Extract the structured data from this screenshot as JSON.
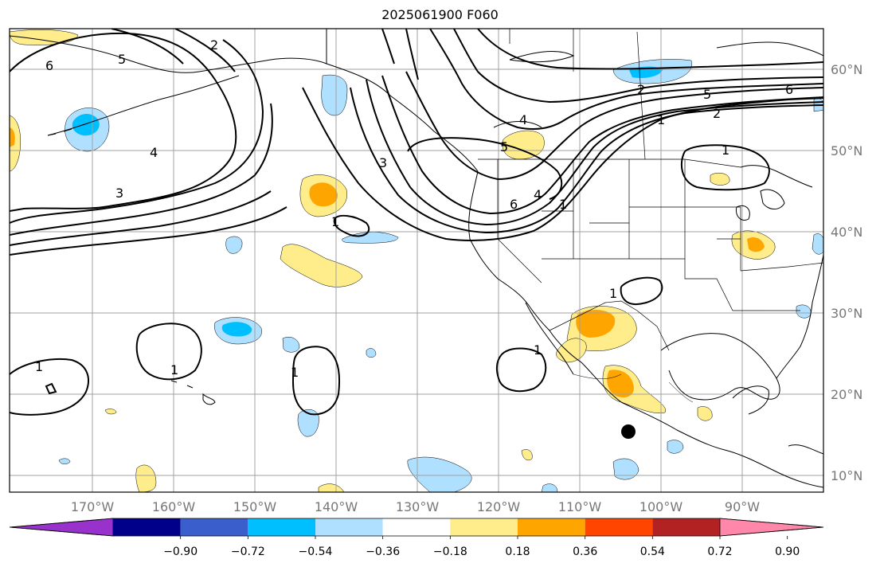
{
  "title": "2025061900 F060",
  "lon_labels": [
    "170°W",
    "160°W",
    "150°W",
    "140°W",
    "130°W",
    "120°W",
    "110°W",
    "100°W",
    "90°W"
  ],
  "lat_labels": [
    "60°N",
    "50°N",
    "40°N",
    "30°N",
    "20°N",
    "10°N"
  ],
  "colorbar": {
    "ticks": [
      "−0.90",
      "−0.72",
      "−0.54",
      "−0.36",
      "−0.18",
      "0.18",
      "0.36",
      "0.54",
      "0.72",
      "0.90"
    ],
    "colors": [
      "#9932cc",
      "#00008b",
      "#3a5fcd",
      "#00bfff",
      "#b0e0ff",
      "#ffffff",
      "#ffec8b",
      "#ffa500",
      "#ff4500",
      "#b22222",
      "#ff88aa"
    ]
  },
  "contour_labels": [
    "6",
    "5",
    "2",
    "4",
    "3",
    "1",
    "5",
    "4",
    "3",
    "2",
    "1",
    "6",
    "4",
    "6",
    "5",
    "2",
    "1",
    "1",
    "1",
    "1",
    "1",
    "1",
    "1"
  ],
  "marker": "filled-circle"
}
